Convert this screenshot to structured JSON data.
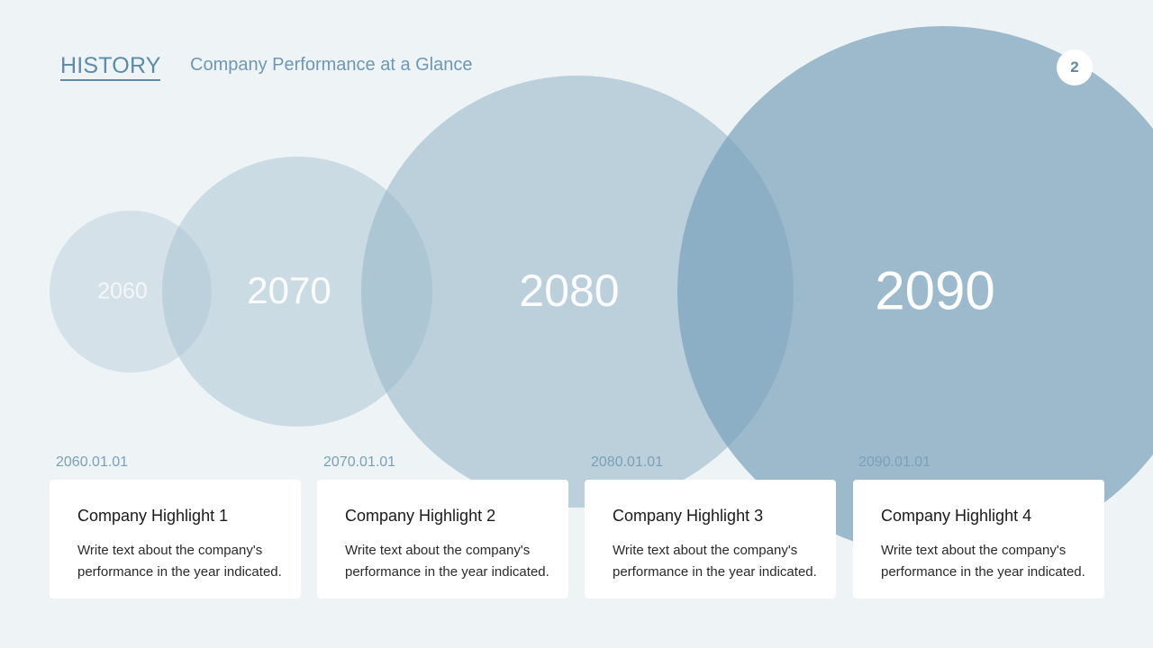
{
  "header": {
    "section_title": "HISTORY",
    "subtitle": "Company Performance at a Glance",
    "page_number": "2"
  },
  "timeline": [
    {
      "year": "2060",
      "date": "2060.01.01",
      "title": "Company Highlight 1",
      "body": "Write text about the company's performance in the year indicated."
    },
    {
      "year": "2070",
      "date": "2070.01.01",
      "title": "Company Highlight 2",
      "body": "Write text about the company's performance in the year indicated."
    },
    {
      "year": "2080",
      "date": "2080.01.01",
      "title": "Company Highlight 3",
      "body": "Write text about the company's performance in the year indicated."
    },
    {
      "year": "2090",
      "date": "2090.01.01",
      "title": "Company Highlight 4",
      "body": "Write text about the company's performance in the year indicated."
    }
  ],
  "colors": {
    "background": "#eef3f6",
    "accent": "#5b8cab",
    "card": "#ffffff"
  }
}
